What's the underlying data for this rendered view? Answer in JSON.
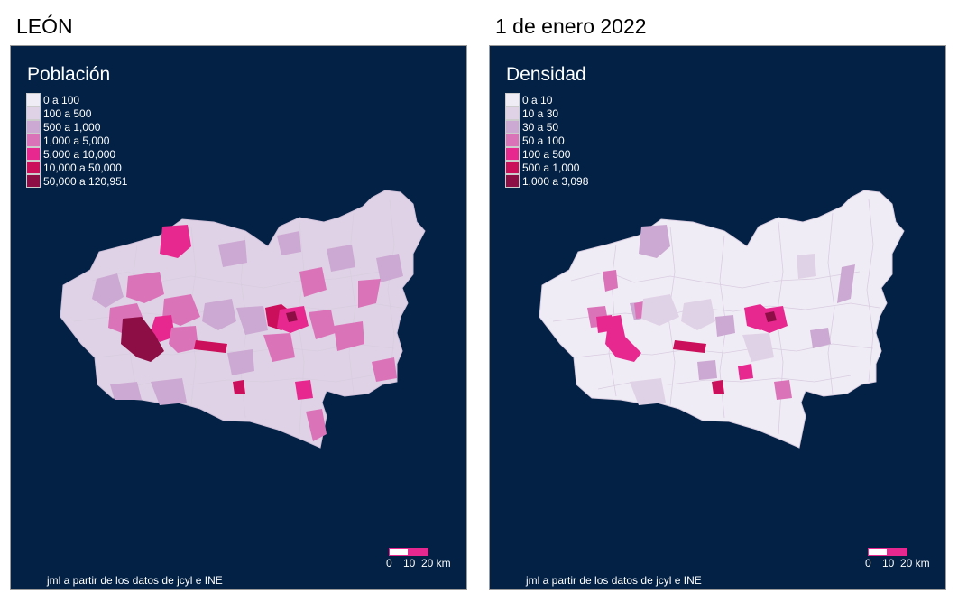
{
  "header": {
    "left_title": "LEÓN",
    "right_title": "1 de enero 2022"
  },
  "palette": [
    "#f0ecf5",
    "#e0d2e6",
    "#cca9d2",
    "#db73b9",
    "#e7288f",
    "#cb0f5a",
    "#8d0e45"
  ],
  "map_background": "#022144",
  "panels": [
    {
      "legend_title": "Población",
      "legend": [
        {
          "label": "0 a 100",
          "color": "#f0ecf5"
        },
        {
          "label": "100 a 500",
          "color": "#e0d2e6"
        },
        {
          "label": "500 a 1,000",
          "color": "#cca9d2"
        },
        {
          "label": "1,000 a 5,000",
          "color": "#db73b9"
        },
        {
          "label": "5,000 a 10,000",
          "color": "#e7288f"
        },
        {
          "label": "10,000 a 50,000",
          "color": "#cb0f5a"
        },
        {
          "label": "50,000 a 120,951",
          "color": "#8d0e45"
        }
      ],
      "scale": {
        "labels": [
          "0",
          "10",
          "20 km"
        ]
      },
      "caption": "jml a partir de los datos de jcyl e INE"
    },
    {
      "legend_title": "Densidad",
      "legend": [
        {
          "label": "0 a 10",
          "color": "#f0ecf5"
        },
        {
          "label": "10 a 30",
          "color": "#e0d2e6"
        },
        {
          "label": "30 a 50",
          "color": "#cca9d2"
        },
        {
          "label": "50 a 100",
          "color": "#db73b9"
        },
        {
          "label": "100 a 500",
          "color": "#e7288f"
        },
        {
          "label": "500 a 1,000",
          "color": "#cb0f5a"
        },
        {
          "label": "1,000 a 3,098",
          "color": "#8d0e45"
        }
      ],
      "scale": {
        "labels": [
          "0",
          "10",
          "20 km"
        ]
      },
      "caption": "jml a partir de los datos de jcyl e INE"
    }
  ]
}
